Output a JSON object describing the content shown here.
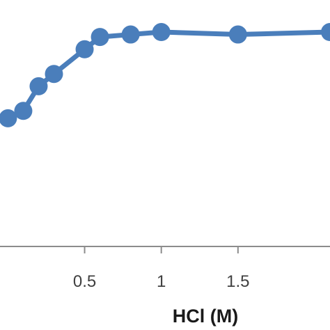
{
  "chart_data": {
    "type": "line",
    "xlabel": "HCl (M)",
    "ylabel": "",
    "title": "",
    "x_ticks": [
      "0.5",
      "1",
      "1.5"
    ],
    "x_tick_values": [
      0.5,
      1,
      1.5
    ],
    "xlim": [
      -0.02,
      2.1
    ],
    "ylim": [
      0,
      100
    ],
    "grid": false,
    "legend": "none",
    "series": [
      {
        "color": "#4a7ebb",
        "x": [
          0.0,
          0.1,
          0.2,
          0.3,
          0.5,
          0.6,
          0.8,
          1.0,
          1.5,
          2.1
        ],
        "y": [
          52,
          55,
          65,
          70,
          80,
          85,
          86,
          87,
          86,
          87
        ]
      }
    ]
  }
}
